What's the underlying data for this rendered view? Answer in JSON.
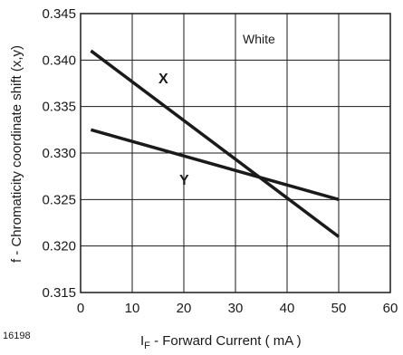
{
  "chart_data": {
    "type": "line",
    "title": "",
    "xlabel": "I_F - Forward Current ( mA )",
    "xlabel_main": "I",
    "xlabel_sub": "F",
    "xlabel_rest": " - Forward Current ( mA )",
    "ylabel": "f - Chromaticity coordinate shift (x,y)",
    "xlim": [
      0,
      60
    ],
    "ylim": [
      0.315,
      0.345
    ],
    "x_ticks": [
      0,
      10,
      20,
      30,
      40,
      50,
      60
    ],
    "x_tick_labels": [
      "0",
      "10",
      "20",
      "30",
      "40",
      "50",
      "60"
    ],
    "y_ticks": [
      0.315,
      0.32,
      0.325,
      0.33,
      0.335,
      0.34,
      0.345
    ],
    "y_tick_labels": [
      "0.315",
      "0.320",
      "0.325",
      "0.330",
      "0.335",
      "0.340",
      "0.345"
    ],
    "grid": true,
    "annotation": "White",
    "series": [
      {
        "name": "X",
        "x": [
          2,
          50
        ],
        "y": [
          0.341,
          0.321
        ]
      },
      {
        "name": "Y",
        "x": [
          2,
          50
        ],
        "y": [
          0.3325,
          0.325
        ]
      }
    ]
  },
  "figure_id": "16198",
  "colors": {
    "line": "#1a1a1a",
    "grid": "#1a1a1a",
    "background": "#ffffff"
  }
}
